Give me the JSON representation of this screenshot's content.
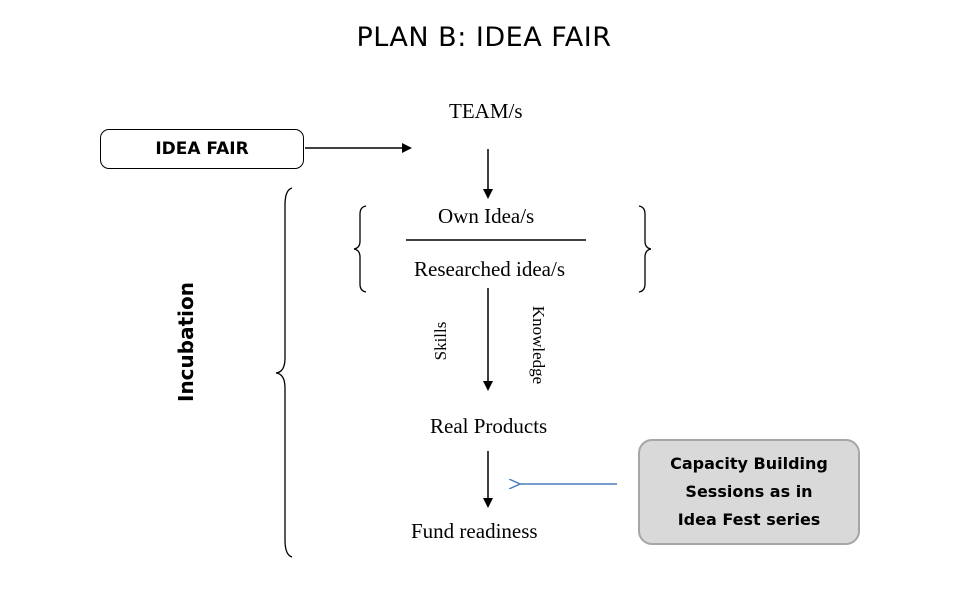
{
  "title": "PLAN B: IDEA FAIR",
  "idea_fair_box": "IDEA FAIR",
  "nodes": {
    "team": "TEAM/s",
    "own_idea": "Own Idea/s",
    "researched_idea": "Researched idea/s",
    "real_products": "Real Products",
    "fund_readiness": "Fund readiness"
  },
  "arrow_labels": {
    "skills": "Skills",
    "knowledge": "Knowledge"
  },
  "side_label": "Incubation",
  "capacity_box": {
    "line1": "Capacity Building",
    "line2": "Sessions as in",
    "line3": "Idea Fest series"
  },
  "colors": {
    "capacity_arrow": "#4a7ebb",
    "capacity_fill": "#d9d9d9",
    "capacity_border": "#a6a6a6"
  }
}
